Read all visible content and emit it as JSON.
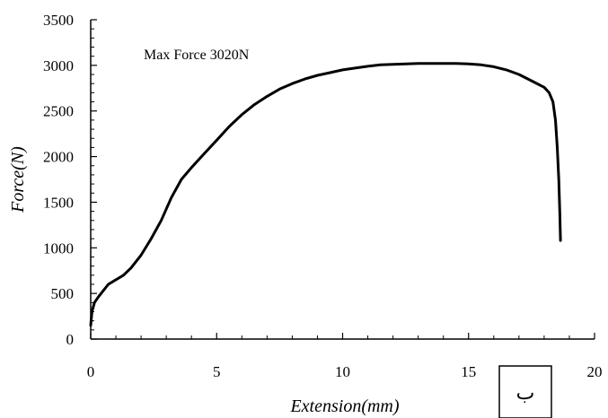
{
  "chart_data": {
    "type": "line",
    "title": "",
    "xlabel": "Extension(mm)",
    "ylabel": "Force(N)",
    "xlim": [
      0,
      20
    ],
    "ylim": [
      0,
      3500
    ],
    "x_ticks": [
      0,
      5,
      10,
      15,
      20
    ],
    "y_ticks": [
      0,
      500,
      1000,
      1500,
      2000,
      2500,
      3000,
      3500
    ],
    "x_tick_labels": [
      "0",
      "5",
      "10",
      "15",
      "20"
    ],
    "y_tick_labels": [
      "0",
      "500",
      "1000",
      "1500",
      "2000",
      "2500",
      "3000",
      "3500"
    ],
    "grid": false,
    "legend": "none",
    "annotation": "Max Force  3020N",
    "corner_label": "ب",
    "colors": {
      "line": "#000000",
      "axis": "#000000",
      "background": "#ffffff"
    },
    "series": [
      {
        "x": [
          0,
          0.05,
          0.15,
          0.3,
          0.5,
          0.7,
          1.0,
          1.3,
          1.6,
          2.0,
          2.4,
          2.8,
          3.2,
          3.6,
          4.0,
          4.5,
          5.0,
          5.5,
          6.0,
          6.5,
          7.0,
          7.5,
          8.0,
          8.5,
          9.0,
          9.5,
          10.0,
          10.5,
          11.0,
          11.5,
          12.0,
          12.5,
          13.0,
          13.5,
          14.0,
          14.5,
          15.0,
          15.5,
          16.0,
          16.5,
          17.0,
          17.5,
          18.0,
          18.2,
          18.35,
          18.45,
          18.52,
          18.58,
          18.62,
          18.65
        ],
        "y": [
          150,
          300,
          400,
          460,
          530,
          600,
          650,
          700,
          780,
          920,
          1100,
          1300,
          1550,
          1750,
          1880,
          2030,
          2180,
          2330,
          2460,
          2570,
          2660,
          2740,
          2800,
          2850,
          2890,
          2920,
          2950,
          2970,
          2990,
          3005,
          3010,
          3015,
          3020,
          3020,
          3020,
          3020,
          3015,
          3005,
          2985,
          2950,
          2900,
          2830,
          2760,
          2700,
          2600,
          2400,
          2100,
          1750,
          1400,
          1080
        ]
      }
    ]
  }
}
